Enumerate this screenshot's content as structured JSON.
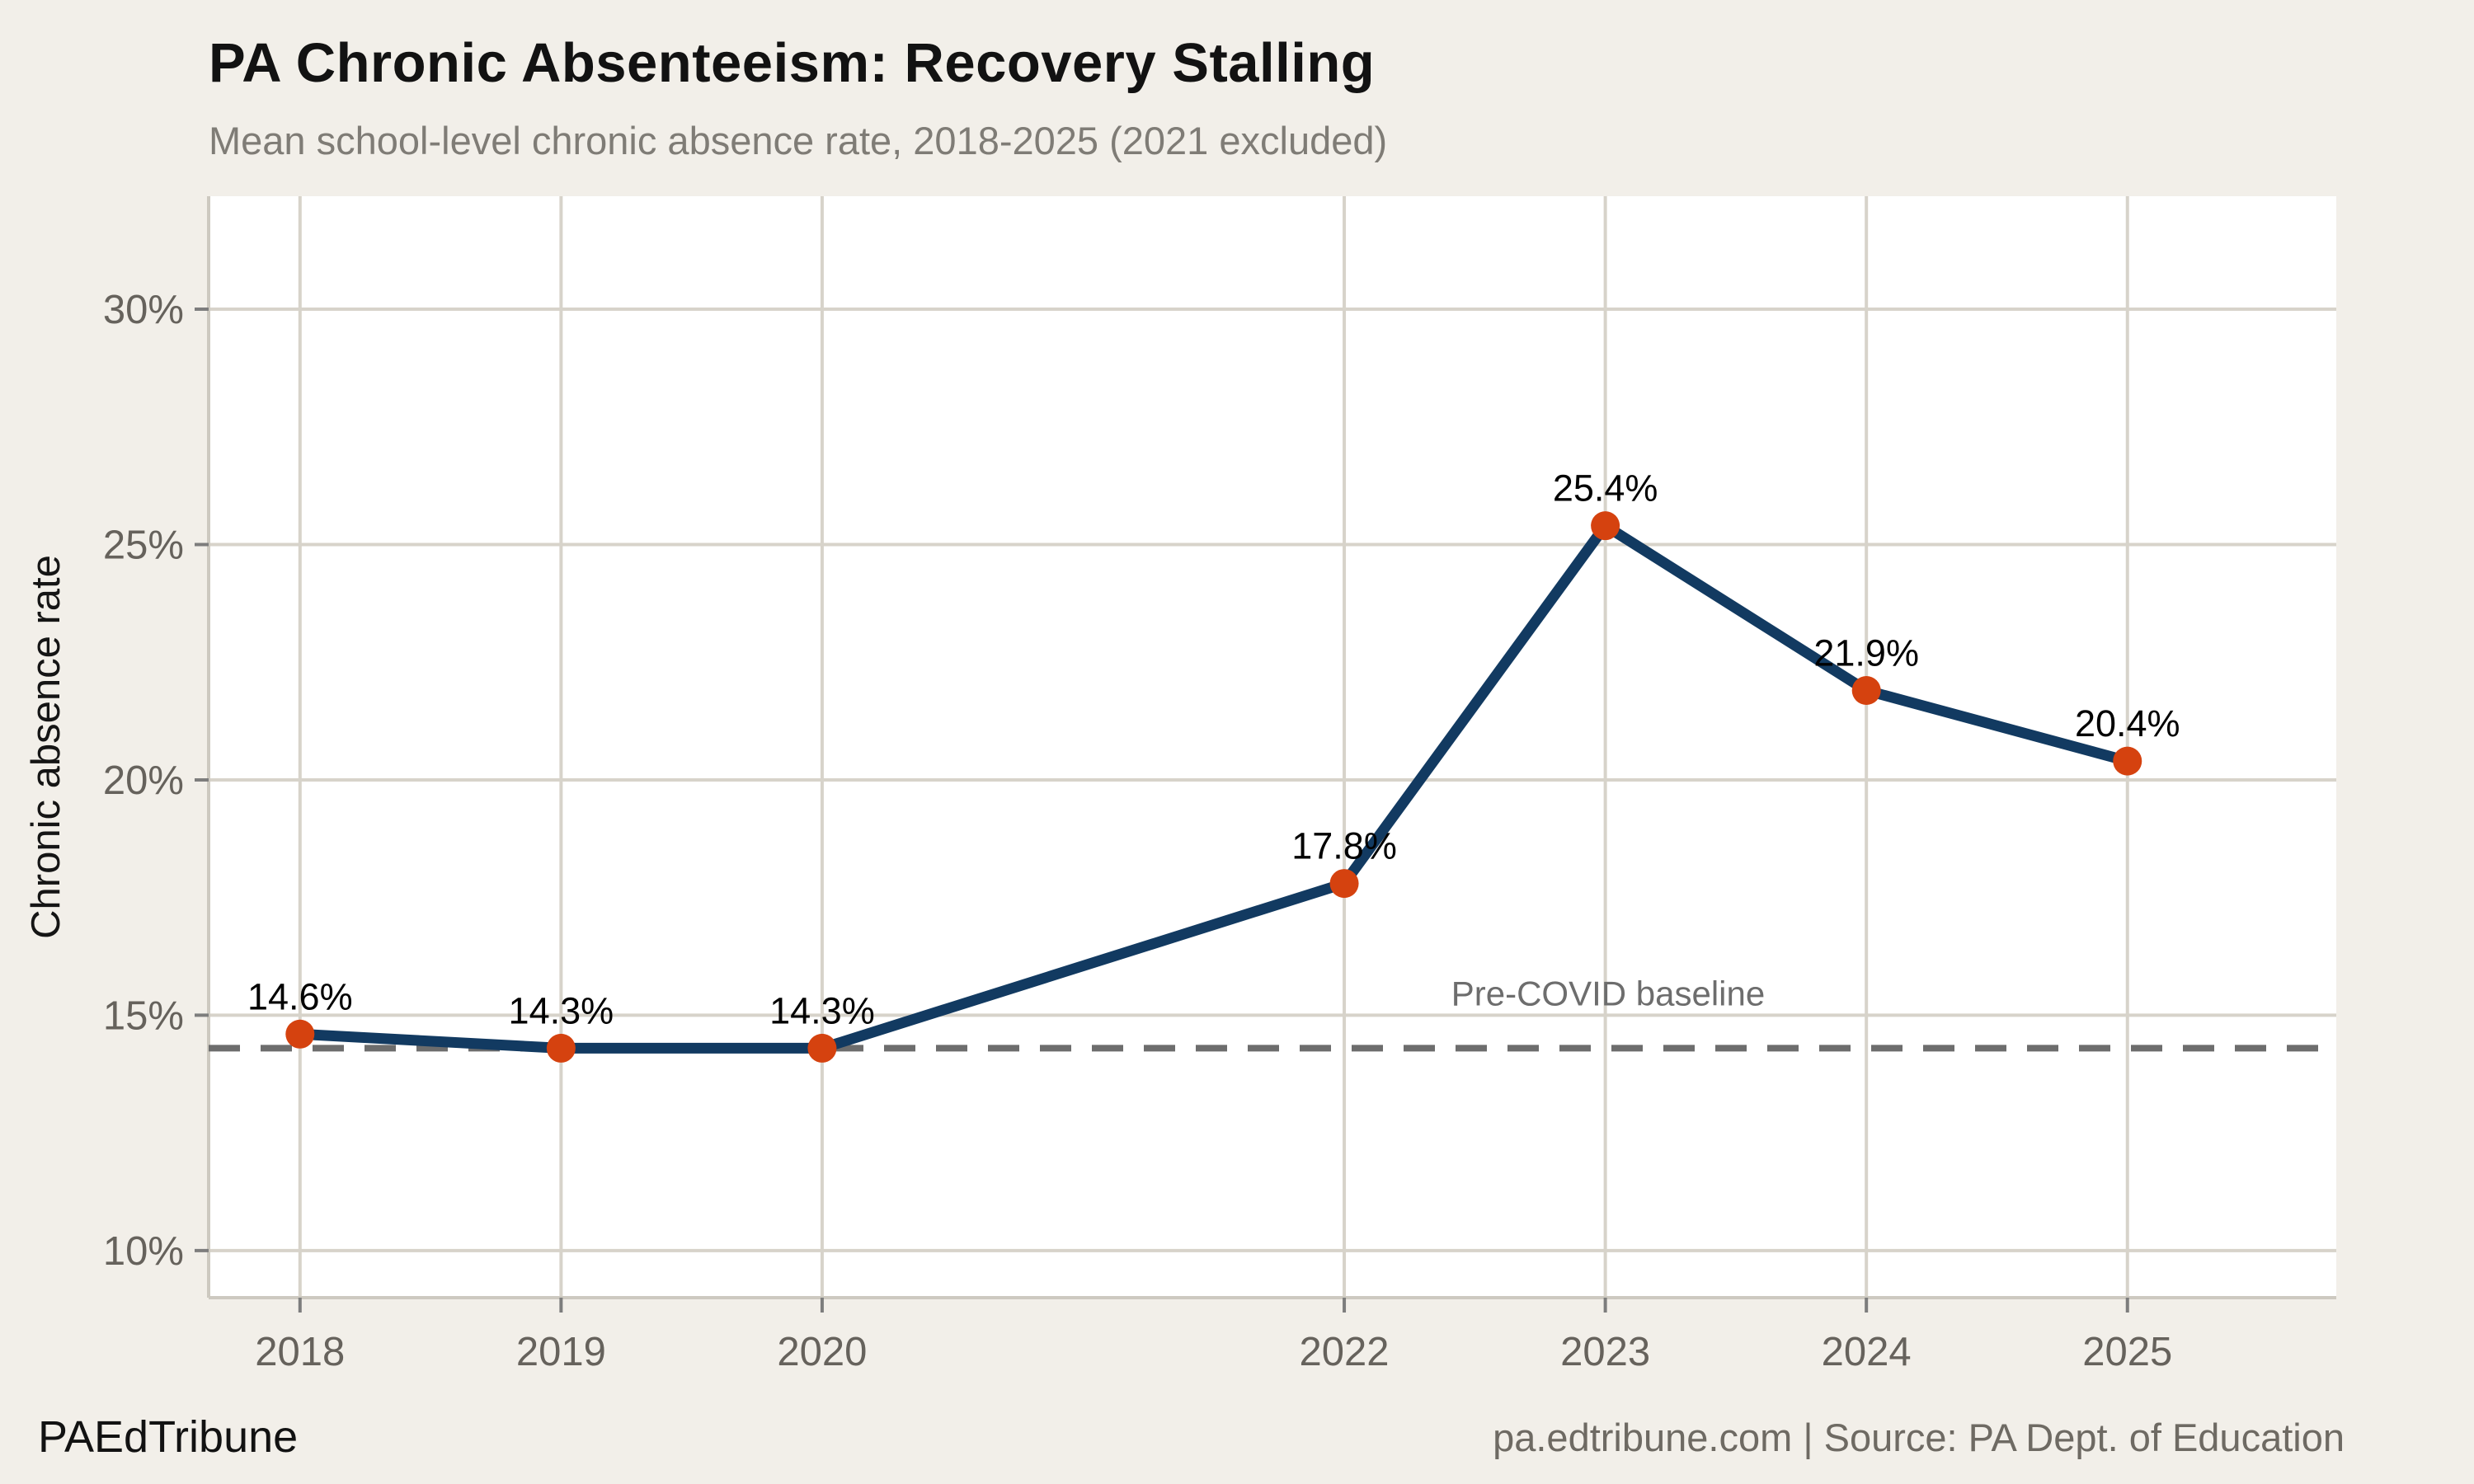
{
  "page": {
    "title": "PA Chronic Absenteeism: Recovery Stalling",
    "subtitle": "Mean school-level chronic absence rate, 2018-2025 (2021 excluded)",
    "footer_left": "PAEdTribune",
    "footer_right": "pa.edtribune.com | Source: PA Dept. of Education",
    "background_color": "#f2efe9"
  },
  "chart_data": {
    "type": "line",
    "title": "PA Chronic Absenteeism: Recovery Stalling",
    "subtitle": "Mean school-level chronic absence rate, 2018-2025 (2021 excluded)",
    "x": [
      2018,
      2019,
      2020,
      2022,
      2023,
      2024,
      2025
    ],
    "x_tick_labels": [
      "2018",
      "2019",
      "2020",
      "2022",
      "2023",
      "2024",
      "2025"
    ],
    "series": [
      {
        "name": "Mean school-level chronic absence rate",
        "values": [
          14.6,
          14.3,
          14.3,
          17.8,
          25.4,
          21.9,
          20.4
        ]
      }
    ],
    "point_labels": [
      "14.6%",
      "14.3%",
      "14.3%",
      "17.8%",
      "25.4%",
      "21.9%",
      "20.4%"
    ],
    "xlabel": "",
    "ylabel": "Chronic absence rate",
    "y_ticks": [
      10,
      15,
      20,
      25,
      30
    ],
    "y_tick_labels": [
      "10%",
      "15%",
      "20%",
      "25%",
      "30%"
    ],
    "xlim": [
      2017.65,
      2025.8
    ],
    "ylim": [
      9.0,
      32.4
    ],
    "grid": true,
    "legend_position": "none",
    "baseline": {
      "value": 14.3,
      "label": "Pre-COVID baseline",
      "style": "dashed"
    },
    "colors": {
      "line": "#123a61",
      "point": "#d5420f",
      "panel": "#ffffff",
      "grid": "#d7d3ca",
      "axis_line": "#cdc9c0",
      "tick_mark": "#7d7d7d",
      "tick_text": "#66625c",
      "baseline_line": "#6d6d6d",
      "baseline_text": "#6d6d6d",
      "data_label_text": "#000000",
      "axis_title_text": "#151515"
    }
  }
}
